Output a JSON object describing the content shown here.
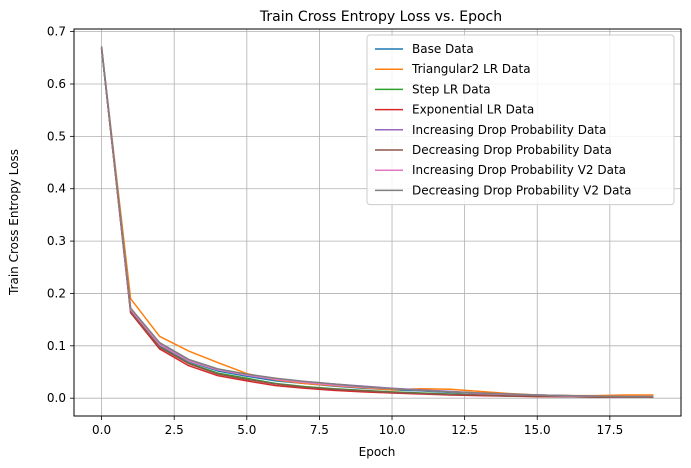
{
  "chart_data": {
    "type": "line",
    "title": "Train Cross Entropy Loss vs. Epoch",
    "xlabel": "Epoch",
    "ylabel": "Train Cross Entropy Loss",
    "xlim": [
      -0.95,
      19.95
    ],
    "ylim": [
      -0.034,
      0.705
    ],
    "xticks": [
      0,
      2.5,
      5,
      7.5,
      10,
      12.5,
      15,
      17.5
    ],
    "xtick_labels": [
      "0.0",
      "2.5",
      "5.0",
      "7.5",
      "10.0",
      "12.5",
      "15.0",
      "17.5"
    ],
    "yticks": [
      0,
      0.1,
      0.2,
      0.3,
      0.4,
      0.5,
      0.6,
      0.7
    ],
    "ytick_labels": [
      "0.0",
      "0.1",
      "0.2",
      "0.3",
      "0.4",
      "0.5",
      "0.6",
      "0.7"
    ],
    "grid": true,
    "legend_position": "top-right",
    "x": [
      0,
      1,
      2,
      3,
      4,
      5,
      6,
      7,
      8,
      9,
      10,
      11,
      12,
      13,
      14,
      15,
      16,
      17,
      18,
      19
    ],
    "series": [
      {
        "name": "Base Data",
        "color": "#1f77b4",
        "values": [
          0.668,
          0.168,
          0.1,
          0.07,
          0.052,
          0.042,
          0.033,
          0.028,
          0.023,
          0.019,
          0.016,
          0.014,
          0.011,
          0.009,
          0.007,
          0.006,
          0.005,
          0.004,
          0.003,
          0.003
        ]
      },
      {
        "name": "Triangular2 LR Data",
        "color": "#ff7f0e",
        "values": [
          0.668,
          0.19,
          0.118,
          0.09,
          0.068,
          0.047,
          0.035,
          0.028,
          0.024,
          0.02,
          0.016,
          0.018,
          0.017,
          0.013,
          0.009,
          0.006,
          0.005,
          0.005,
          0.006,
          0.006
        ]
      },
      {
        "name": "Step LR Data",
        "color": "#2ca02c",
        "values": [
          0.668,
          0.166,
          0.098,
          0.067,
          0.048,
          0.038,
          0.028,
          0.022,
          0.018,
          0.015,
          0.012,
          0.01,
          0.008,
          0.006,
          0.005,
          0.004,
          0.003,
          0.003,
          0.002,
          0.002
        ]
      },
      {
        "name": "Exponential LR Data",
        "color": "#d62728",
        "values": [
          0.668,
          0.163,
          0.094,
          0.062,
          0.043,
          0.033,
          0.024,
          0.019,
          0.015,
          0.012,
          0.01,
          0.008,
          0.006,
          0.005,
          0.004,
          0.003,
          0.003,
          0.002,
          0.002,
          0.002
        ]
      },
      {
        "name": "Increasing Drop Probability Data",
        "color": "#9467bd",
        "values": [
          0.67,
          0.17,
          0.104,
          0.072,
          0.055,
          0.045,
          0.037,
          0.032,
          0.027,
          0.023,
          0.019,
          0.016,
          0.013,
          0.01,
          0.008,
          0.006,
          0.005,
          0.004,
          0.003,
          0.003
        ]
      },
      {
        "name": "Decreasing Drop Probability Data",
        "color": "#8c564b",
        "values": [
          0.668,
          0.165,
          0.097,
          0.066,
          0.046,
          0.036,
          0.027,
          0.021,
          0.017,
          0.014,
          0.011,
          0.009,
          0.007,
          0.006,
          0.004,
          0.004,
          0.003,
          0.002,
          0.002,
          0.002
        ]
      },
      {
        "name": "Increasing Drop Probability V2 Data",
        "color": "#e377c2",
        "values": [
          0.67,
          0.169,
          0.102,
          0.071,
          0.054,
          0.044,
          0.036,
          0.03,
          0.025,
          0.021,
          0.018,
          0.015,
          0.012,
          0.009,
          0.007,
          0.006,
          0.004,
          0.004,
          0.003,
          0.003
        ]
      },
      {
        "name": "Decreasing Drop Probability V2 Data",
        "color": "#7f7f7f",
        "values": [
          0.672,
          0.172,
          0.106,
          0.074,
          0.056,
          0.046,
          0.038,
          0.032,
          0.027,
          0.022,
          0.018,
          0.015,
          0.012,
          0.01,
          0.008,
          0.006,
          0.005,
          0.004,
          0.003,
          0.003
        ]
      }
    ]
  }
}
